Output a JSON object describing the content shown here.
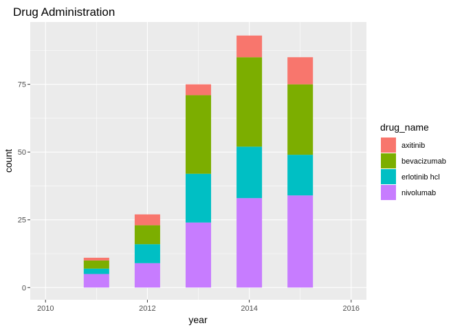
{
  "chart_data": {
    "type": "bar",
    "stacked": true,
    "title": "Drug Administration",
    "xlabel": "year",
    "ylabel": "count",
    "categories": [
      2011,
      2012,
      2013,
      2014,
      2015
    ],
    "x_ticks": [
      "2010",
      "2012",
      "2014",
      "2016"
    ],
    "y_ticks": [
      "0",
      "25",
      "50",
      "75"
    ],
    "xlim": [
      2009.7,
      2016.3
    ],
    "ylim": [
      -4.5,
      98
    ],
    "grid": true,
    "legend": {
      "title": "drug_name",
      "position": "right"
    },
    "series": [
      {
        "name": "nivolumab",
        "color": "#C77CFF",
        "values": [
          5,
          9,
          24,
          33,
          34
        ]
      },
      {
        "name": "erlotinib hcl",
        "color": "#00BFC4",
        "values": [
          2,
          7,
          18,
          19,
          15
        ]
      },
      {
        "name": "bevacizumab",
        "color": "#7CAE00",
        "values": [
          3,
          7,
          29,
          33,
          26
        ]
      },
      {
        "name": "axitinib",
        "color": "#F8766D",
        "values": [
          1,
          4,
          4,
          8,
          10
        ]
      }
    ],
    "legend_order": [
      "axitinib",
      "bevacizumab",
      "erlotinib hcl",
      "nivolumab"
    ],
    "panel_color": "#EBEBEB"
  }
}
